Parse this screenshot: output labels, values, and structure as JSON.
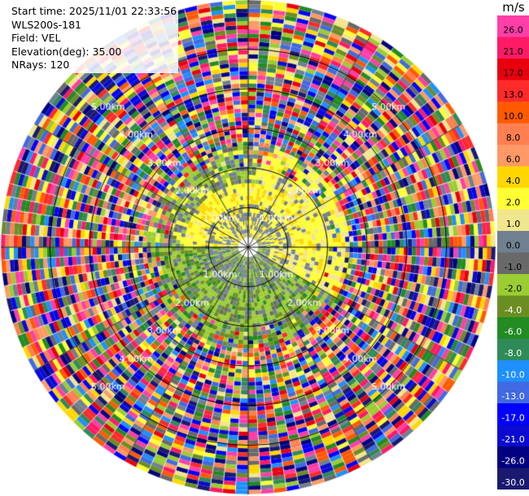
{
  "info": {
    "start_time": "Start time: 2025/11/01 22:33:56",
    "instrument": "WLS200s-181",
    "field": "Field: VEL",
    "elevation": "Elevation(deg): 35.00",
    "nrays": "NRays: 120"
  },
  "chart_data": {
    "type": "heatmap",
    "projection": "polar-ppi",
    "nrays": 120,
    "range_unit": "km",
    "range_max_km": 6.2,
    "range_rings": [
      1,
      2,
      3,
      4,
      5
    ],
    "ring_labels": [
      "1.00km",
      "2.00km",
      "3.00km",
      "4.00km",
      "5.00km"
    ],
    "colorbar": {
      "title": "m/s",
      "levels": [
        "26.0",
        "21.0",
        "17.0",
        "13.0",
        "10.0",
        "8.0",
        "6.0",
        "4.0",
        "2.0",
        "1.0",
        "0.0",
        "-1.0",
        "-2.0",
        "-4.0",
        "-6.0",
        "-8.0",
        "-10.0",
        "-13.0",
        "-17.0",
        "-21.0",
        "-26.0",
        "-30.0"
      ],
      "colors": [
        "#ff3ea8",
        "#ff1a66",
        "#e8000f",
        "#ff2a2a",
        "#ff5a00",
        "#ff7f50",
        "#ff9966",
        "#ffd700",
        "#ffff33",
        "#f0e68c",
        "#708090",
        "#696969",
        "#9acd32",
        "#6b8e23",
        "#228b22",
        "#2e8b57",
        "#1e90ff",
        "#4169e1",
        "#0000ff",
        "#0a0ad2",
        "#000080",
        "#191970"
      ]
    }
  }
}
